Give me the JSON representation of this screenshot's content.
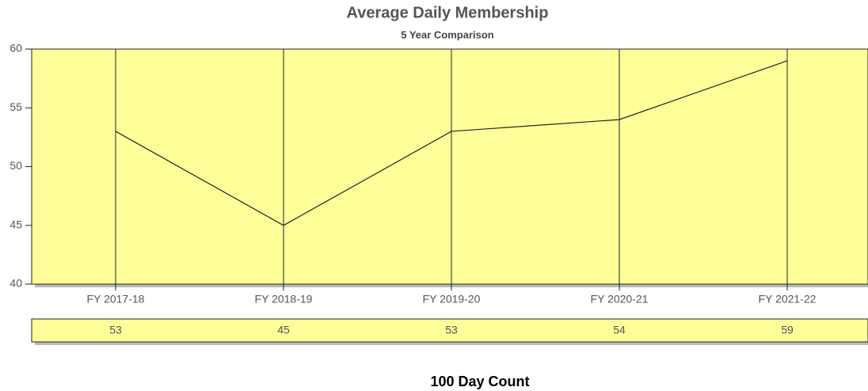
{
  "chart_data": {
    "type": "line",
    "title": "Average Daily Membership",
    "subtitle": "5 Year Comparison",
    "categories": [
      "FY 2017-18",
      "FY 2018-19",
      "FY 2019-20",
      "FY 2020-21",
      "FY 2021-22"
    ],
    "values": [
      53,
      45,
      53,
      54,
      59
    ],
    "color": "#222222",
    "background": "#ffff99",
    "ylim": [
      40,
      60
    ],
    "yticks": [
      40,
      45,
      50,
      55,
      60
    ],
    "grid": true,
    "footer": "100 Day Count"
  }
}
